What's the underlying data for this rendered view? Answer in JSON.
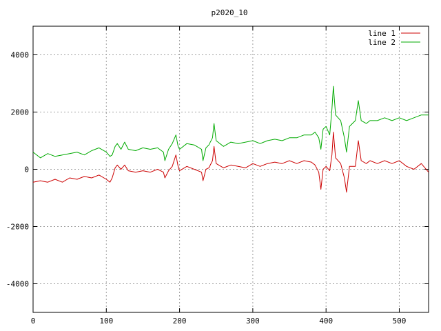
{
  "chart_data": {
    "type": "line",
    "title": "p2020_10",
    "xlabel": "",
    "ylabel": "",
    "xlim": [
      0,
      540
    ],
    "ylim": [
      -5000,
      5000
    ],
    "x_ticks": [
      0,
      100,
      200,
      300,
      400,
      500
    ],
    "y_ticks": [
      -4000,
      -2000,
      0,
      2000,
      4000
    ],
    "grid": true,
    "legend_position": "top-right",
    "series": [
      {
        "name": "line 1",
        "color": "#cc0000",
        "points": [
          [
            0,
            -450
          ],
          [
            10,
            -400
          ],
          [
            20,
            -450
          ],
          [
            30,
            -350
          ],
          [
            40,
            -450
          ],
          [
            50,
            -300
          ],
          [
            60,
            -350
          ],
          [
            70,
            -250
          ],
          [
            80,
            -300
          ],
          [
            90,
            -200
          ],
          [
            100,
            -350
          ],
          [
            105,
            -450
          ],
          [
            108,
            -300
          ],
          [
            112,
            50
          ],
          [
            115,
            150
          ],
          [
            120,
            0
          ],
          [
            125,
            150
          ],
          [
            130,
            -50
          ],
          [
            140,
            -100
          ],
          [
            150,
            -50
          ],
          [
            160,
            -100
          ],
          [
            170,
            0
          ],
          [
            178,
            -100
          ],
          [
            180,
            -300
          ],
          [
            185,
            -50
          ],
          [
            190,
            100
          ],
          [
            195,
            500
          ],
          [
            198,
            100
          ],
          [
            200,
            -50
          ],
          [
            210,
            100
          ],
          [
            220,
            0
          ],
          [
            230,
            -100
          ],
          [
            232,
            -400
          ],
          [
            236,
            0
          ],
          [
            240,
            50
          ],
          [
            245,
            300
          ],
          [
            247,
            800
          ],
          [
            250,
            200
          ],
          [
            260,
            50
          ],
          [
            270,
            150
          ],
          [
            280,
            100
          ],
          [
            290,
            50
          ],
          [
            300,
            200
          ],
          [
            310,
            100
          ],
          [
            320,
            200
          ],
          [
            330,
            250
          ],
          [
            340,
            200
          ],
          [
            350,
            300
          ],
          [
            360,
            200
          ],
          [
            370,
            300
          ],
          [
            380,
            250
          ],
          [
            385,
            150
          ],
          [
            390,
            -100
          ],
          [
            393,
            -700
          ],
          [
            396,
            0
          ],
          [
            400,
            100
          ],
          [
            405,
            -50
          ],
          [
            408,
            500
          ],
          [
            410,
            1300
          ],
          [
            413,
            400
          ],
          [
            420,
            200
          ],
          [
            425,
            -300
          ],
          [
            428,
            -800
          ],
          [
            432,
            100
          ],
          [
            440,
            100
          ],
          [
            444,
            1000
          ],
          [
            448,
            300
          ],
          [
            455,
            200
          ],
          [
            460,
            300
          ],
          [
            470,
            200
          ],
          [
            480,
            300
          ],
          [
            490,
            200
          ],
          [
            500,
            300
          ],
          [
            510,
            100
          ],
          [
            520,
            0
          ],
          [
            530,
            200
          ],
          [
            540,
            -100
          ]
        ]
      },
      {
        "name": "line 2",
        "color": "#00aa00",
        "points": [
          [
            0,
            600
          ],
          [
            10,
            400
          ],
          [
            20,
            550
          ],
          [
            30,
            450
          ],
          [
            40,
            500
          ],
          [
            50,
            550
          ],
          [
            60,
            600
          ],
          [
            70,
            500
          ],
          [
            80,
            650
          ],
          [
            90,
            750
          ],
          [
            100,
            600
          ],
          [
            105,
            450
          ],
          [
            108,
            500
          ],
          [
            112,
            800
          ],
          [
            115,
            900
          ],
          [
            120,
            700
          ],
          [
            125,
            950
          ],
          [
            130,
            700
          ],
          [
            140,
            650
          ],
          [
            150,
            750
          ],
          [
            160,
            700
          ],
          [
            170,
            750
          ],
          [
            178,
            600
          ],
          [
            180,
            300
          ],
          [
            185,
            700
          ],
          [
            190,
            900
          ],
          [
            195,
            1200
          ],
          [
            198,
            800
          ],
          [
            200,
            700
          ],
          [
            210,
            900
          ],
          [
            220,
            850
          ],
          [
            230,
            700
          ],
          [
            232,
            300
          ],
          [
            236,
            750
          ],
          [
            240,
            850
          ],
          [
            245,
            1100
          ],
          [
            247,
            1600
          ],
          [
            250,
            1000
          ],
          [
            260,
            800
          ],
          [
            270,
            950
          ],
          [
            280,
            900
          ],
          [
            290,
            950
          ],
          [
            300,
            1000
          ],
          [
            310,
            900
          ],
          [
            320,
            1000
          ],
          [
            330,
            1050
          ],
          [
            340,
            1000
          ],
          [
            350,
            1100
          ],
          [
            360,
            1100
          ],
          [
            370,
            1200
          ],
          [
            380,
            1200
          ],
          [
            385,
            1300
          ],
          [
            390,
            1100
          ],
          [
            393,
            700
          ],
          [
            396,
            1400
          ],
          [
            400,
            1500
          ],
          [
            405,
            1200
          ],
          [
            408,
            2100
          ],
          [
            410,
            2900
          ],
          [
            413,
            1900
          ],
          [
            420,
            1700
          ],
          [
            425,
            1100
          ],
          [
            428,
            600
          ],
          [
            432,
            1500
          ],
          [
            440,
            1700
          ],
          [
            444,
            2400
          ],
          [
            448,
            1700
          ],
          [
            455,
            1600
          ],
          [
            460,
            1700
          ],
          [
            470,
            1700
          ],
          [
            480,
            1800
          ],
          [
            490,
            1700
          ],
          [
            500,
            1800
          ],
          [
            510,
            1700
          ],
          [
            520,
            1800
          ],
          [
            530,
            1900
          ],
          [
            540,
            1900
          ]
        ]
      }
    ]
  }
}
